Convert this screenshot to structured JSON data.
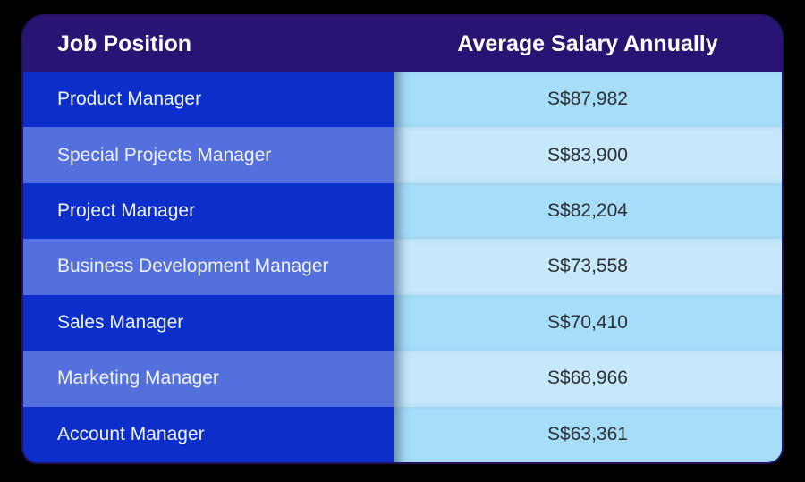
{
  "table": {
    "header": {
      "position": "Job Position",
      "salary": "Average Salary Annually"
    },
    "rows": [
      {
        "position": "Product Manager",
        "salary": "S$87,982"
      },
      {
        "position": "Special Projects Manager",
        "salary": "S$83,900"
      },
      {
        "position": "Project Manager",
        "salary": "S$82,204"
      },
      {
        "position": "Business Development Manager",
        "salary": "S$73,558"
      },
      {
        "position": "Sales Manager",
        "salary": "S$70,410"
      },
      {
        "position": "Marketing Manager",
        "salary": "S$68,966"
      },
      {
        "position": "Account Manager",
        "salary": "S$63,361"
      }
    ]
  },
  "colors": {
    "page_background": "#000000",
    "header_background": "#2a1473",
    "row_blue_dark": "#0c2fcb",
    "row_blue_medium": "#5470dc",
    "row_lightblue_dark": "#a6defa",
    "row_lightblue_pale": "#c5e8fb",
    "border": "#251061",
    "header_text": "#ffffff",
    "position_text": "#eef2fc",
    "salary_text": "#2e2f33"
  },
  "chart_data": {
    "type": "table",
    "columns": [
      "Job Position",
      "Average Salary Annually"
    ],
    "categories": [
      "Product Manager",
      "Special Projects Manager",
      "Project Manager",
      "Business Development Manager",
      "Sales Manager",
      "Marketing Manager",
      "Account Manager"
    ],
    "values": [
      87982,
      83900,
      82204,
      73558,
      70410,
      68966,
      63361
    ],
    "currency_prefix": "S$",
    "title": "",
    "xlabel": "Job Position",
    "ylabel": "Average Salary Annually"
  }
}
